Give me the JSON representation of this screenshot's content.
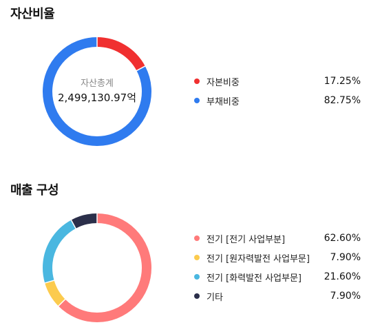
{
  "chart_data": [
    {
      "type": "pie",
      "title": "자산비율",
      "center": {
        "label": "자산총계",
        "value": "2,499,130.97억"
      },
      "slices": [
        {
          "name": "자본비중",
          "value": 17.25,
          "display": "17.25%",
          "color": "#f03030"
        },
        {
          "name": "부채비중",
          "value": 82.75,
          "display": "82.75%",
          "color": "#2f7bef"
        }
      ]
    },
    {
      "type": "pie",
      "title": "매출 구성",
      "slices": [
        {
          "name": "전기 [전기 사업부분]",
          "value": 62.6,
          "display": "62.60%",
          "color": "#ff7a7a"
        },
        {
          "name": "전기 [원자력발전 사업부문]",
          "value": 7.9,
          "display": "7.90%",
          "color": "#fccb4e"
        },
        {
          "name": "전기 [화력발전 사업부문]",
          "value": 21.6,
          "display": "21.60%",
          "color": "#4ab7e0"
        },
        {
          "name": "기타",
          "value": 7.9,
          "display": "7.90%",
          "color": "#2b2f4a"
        }
      ]
    }
  ]
}
